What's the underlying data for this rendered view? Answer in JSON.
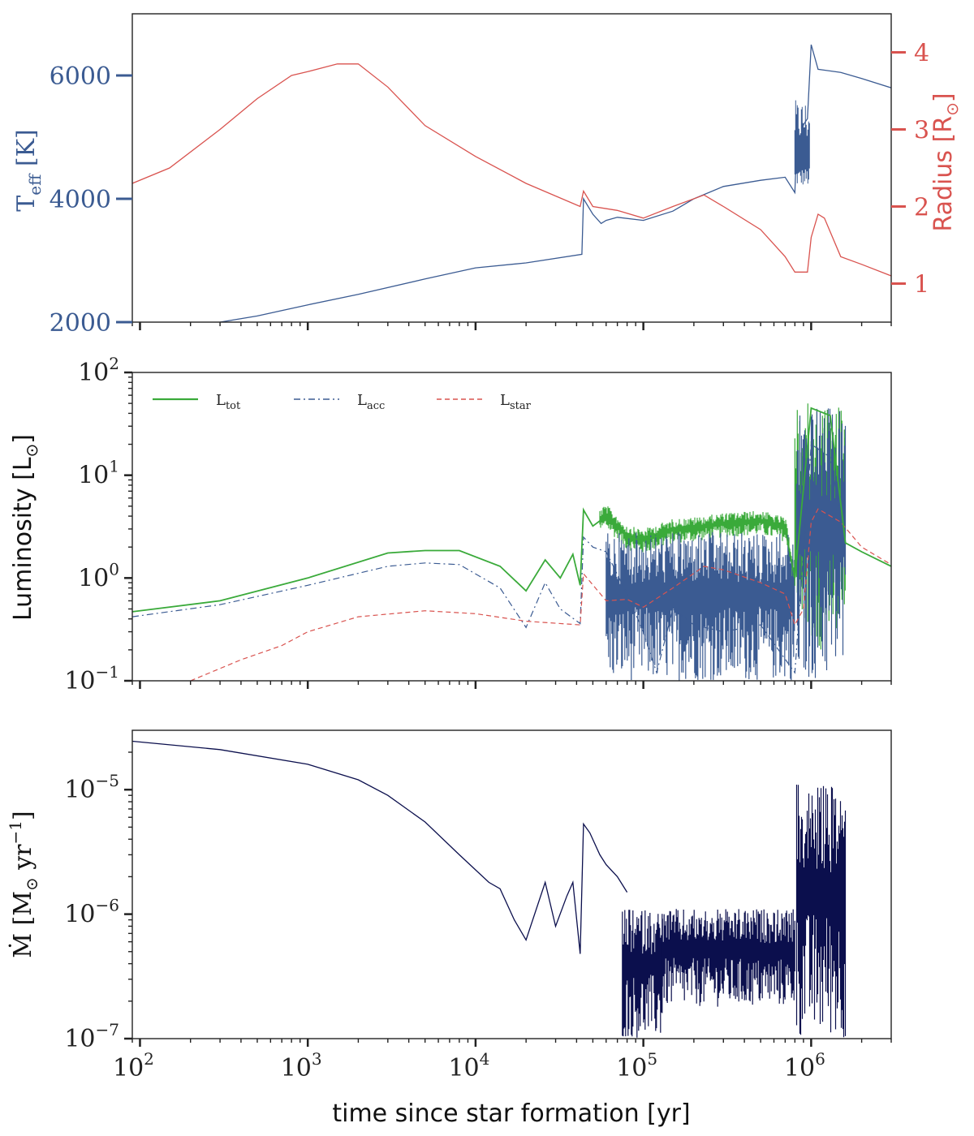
{
  "colors": {
    "teff": "#3b5b92",
    "radius": "#d9534f",
    "ltot": "#3aaa3a",
    "lacc": "#3b5b92",
    "lstar": "#d9534f",
    "mdot": "#0b0f4d",
    "axis": "#222222"
  },
  "chart_data": [
    {
      "id": "top",
      "type": "line",
      "xscale": "log",
      "xlim": [
        90,
        3000000
      ],
      "ylabel_left": {
        "main": "T",
        "sub": "eff",
        "unit": " [K]"
      },
      "ylabel_right": {
        "main": "Radius [R",
        "sub": "⊙",
        "unit": "]"
      },
      "yticks_left": [
        "2000",
        "4000",
        "6000"
      ],
      "yticks_left_values": [
        2000,
        4000,
        6000
      ],
      "yticks_right": [
        "1",
        "2",
        "3",
        "4"
      ],
      "yticks_right_values": [
        1,
        2,
        3,
        4
      ],
      "ylim_left": [
        2000,
        7000
      ],
      "ylim_right": [
        0.5,
        4.5
      ],
      "series": [
        {
          "axis": "left",
          "colorKey": "teff",
          "x": [
            300,
            500,
            1000,
            2000,
            5000,
            10000,
            20000,
            43000,
            44000,
            50000,
            56000,
            60000,
            70000,
            100000,
            150000,
            200000,
            300000,
            500000,
            700000,
            800000,
            810000,
            900000,
            950000,
            1000000,
            1100000,
            1500000,
            2000000,
            3000000
          ],
          "y": [
            2000,
            2100,
            2280,
            2450,
            2700,
            2880,
            2960,
            3100,
            4000,
            3750,
            3600,
            3650,
            3700,
            3650,
            3800,
            4000,
            4200,
            4300,
            4350,
            4100,
            4500,
            5200,
            5300,
            6500,
            6100,
            6050,
            5950,
            5800
          ]
        },
        {
          "axis": "right",
          "colorKey": "radius",
          "x": [
            90,
            150,
            300,
            500,
            800,
            1000,
            1500,
            2000,
            3000,
            5000,
            10000,
            20000,
            42000,
            44000,
            50000,
            70000,
            100000,
            150000,
            230000,
            300000,
            500000,
            700000,
            800000,
            950000,
            1000000,
            1100000,
            1200000,
            1500000,
            2000000,
            3000000
          ],
          "y": [
            2.3,
            2.5,
            3.0,
            3.4,
            3.7,
            3.75,
            3.85,
            3.85,
            3.55,
            3.05,
            2.65,
            2.3,
            2.0,
            2.2,
            2.0,
            1.95,
            1.85,
            2.0,
            2.15,
            2.0,
            1.7,
            1.35,
            1.15,
            1.15,
            1.6,
            1.9,
            1.85,
            1.35,
            1.25,
            1.1
          ]
        }
      ]
    },
    {
      "id": "middle",
      "type": "line",
      "xscale": "log",
      "yscale": "log",
      "xlim": [
        90,
        3000000
      ],
      "ylim": [
        0.1,
        100
      ],
      "ylabel": {
        "main": "Luminosity [L",
        "sub": "⊙",
        "unit": "]"
      },
      "yticks": [
        {
          "base": "10",
          "exp": "−1",
          "value": 0.1
        },
        {
          "base": "10",
          "exp": "0",
          "value": 1
        },
        {
          "base": "10",
          "exp": "1",
          "value": 10
        },
        {
          "base": "10",
          "exp": "2",
          "value": 100
        }
      ],
      "legend": [
        {
          "main": "L",
          "sub": "tot",
          "colorKey": "ltot",
          "dash": ""
        },
        {
          "main": "L",
          "sub": "acc",
          "colorKey": "lacc",
          "dash": "8,4,2,4"
        },
        {
          "main": "L",
          "sub": "star",
          "colorKey": "lstar",
          "dash": "6,4"
        }
      ],
      "series": [
        {
          "name": "L_acc",
          "colorKey": "lacc",
          "dash": "8,4,2,4",
          "x": [
            90,
            300,
            1000,
            3000,
            5000,
            8000,
            14000,
            20000,
            26000,
            32000,
            42000,
            44000,
            50000,
            60000,
            80000,
            100000,
            120000,
            150000,
            200000,
            300000,
            500000,
            800000,
            1000000,
            1300000,
            1600000
          ],
          "y": [
            0.42,
            0.55,
            0.85,
            1.3,
            1.4,
            1.35,
            0.8,
            0.33,
            0.9,
            0.5,
            0.36,
            2.5,
            2.0,
            1.8,
            0.7,
            0.3,
            0.12,
            0.5,
            0.35,
            0.3,
            0.35,
            0.12,
            20,
            15,
            2.1
          ]
        },
        {
          "name": "L_star",
          "colorKey": "lstar",
          "dash": "6,4",
          "x": [
            200,
            400,
            700,
            1000,
            2000,
            5000,
            10000,
            20000,
            42000,
            44000,
            60000,
            80000,
            100000,
            150000,
            230000,
            300000,
            500000,
            700000,
            800000,
            900000,
            1000000,
            1100000,
            1500000,
            2000000,
            3000000
          ],
          "y": [
            0.1,
            0.16,
            0.22,
            0.3,
            0.42,
            0.48,
            0.45,
            0.38,
            0.35,
            1.1,
            0.6,
            0.62,
            0.52,
            0.8,
            1.3,
            1.2,
            0.9,
            0.7,
            0.35,
            0.5,
            3.5,
            4.7,
            3.5,
            2.0,
            1.35
          ]
        },
        {
          "name": "L_tot",
          "colorKey": "ltot",
          "dash": "",
          "x": [
            90,
            300,
            1000,
            3000,
            5000,
            8000,
            14000,
            20000,
            26000,
            32000,
            38000,
            42000,
            44000,
            50000,
            60000,
            80000,
            100000,
            150000,
            200000,
            300000,
            500000,
            700000,
            800000,
            1000000,
            1300000,
            1600000,
            2000000,
            3000000
          ],
          "y": [
            0.47,
            0.6,
            1.0,
            1.75,
            1.85,
            1.85,
            1.3,
            0.75,
            1.5,
            1.0,
            1.7,
            0.85,
            4.6,
            3.2,
            4.0,
            2.5,
            2.3,
            2.9,
            3.0,
            3.3,
            3.5,
            3.0,
            1.0,
            45,
            38,
            2.2,
            1.8,
            1.3
          ]
        }
      ],
      "noise_bands": [
        {
          "colorKey": "ltot",
          "x0": 55000,
          "x1": 800000,
          "ylow_ratio": 0.75,
          "yhigh_ratio": 1.3
        },
        {
          "colorKey": "lacc",
          "x0": 60000,
          "x1": 800000,
          "ylow": 0.1,
          "yhigh": 2.8
        },
        {
          "colorKey": "ltot",
          "x0": 800000,
          "x1": 1600000,
          "ylow": 0.2,
          "yhigh": 50
        },
        {
          "colorKey": "lacc",
          "x0": 820000,
          "x1": 1600000,
          "ylow": 0.1,
          "yhigh": 45
        }
      ]
    },
    {
      "id": "bottom",
      "type": "line",
      "xscale": "log",
      "yscale": "log",
      "xlim": [
        90,
        3000000
      ],
      "ylim": [
        1e-07,
        3e-05
      ],
      "xlabel": "time since star formation [yr]",
      "ylabel": {
        "main": "Ṁ [M",
        "sub": "⊙",
        "unit": " yr",
        "sup": "−1",
        "end": "]"
      },
      "xticks": [
        {
          "base": "10",
          "exp": "2",
          "value": 100
        },
        {
          "base": "10",
          "exp": "3",
          "value": 1000
        },
        {
          "base": "10",
          "exp": "4",
          "value": 10000
        },
        {
          "base": "10",
          "exp": "5",
          "value": 100000
        },
        {
          "base": "10",
          "exp": "6",
          "value": 1000000
        }
      ],
      "yticks": [
        {
          "base": "10",
          "exp": "−7",
          "value": 1e-07
        },
        {
          "base": "10",
          "exp": "−6",
          "value": 1e-06
        },
        {
          "base": "10",
          "exp": "−5",
          "value": 1e-05
        }
      ],
      "series": [
        {
          "name": "Mdot",
          "colorKey": "mdot",
          "x": [
            90,
            300,
            1000,
            2000,
            3000,
            5000,
            8000,
            12000,
            14000,
            17000,
            20000,
            26000,
            30000,
            35000,
            38000,
            42000,
            44000,
            48000,
            55000,
            60000,
            70000,
            80000
          ],
          "y": [
            2.45e-05,
            2.1e-05,
            1.6e-05,
            1.2e-05,
            9e-06,
            5.5e-06,
            3e-06,
            1.8e-06,
            1.6e-06,
            9e-07,
            6.2e-07,
            1.8e-06,
            8e-07,
            1.4e-06,
            1.8e-06,
            4.8e-07,
            5.3e-06,
            4.5e-06,
            3e-06,
            2.5e-06,
            2e-06,
            1.5e-06
          ]
        }
      ],
      "noise_bands": [
        {
          "colorKey": "mdot",
          "x0": 75000,
          "x1": 130000,
          "ylow": 1e-07,
          "yhigh": 1.1e-06
        },
        {
          "colorKey": "mdot",
          "x0": 130000,
          "x1": 800000,
          "ylow": 1.8e-07,
          "yhigh": 1.1e-06
        },
        {
          "colorKey": "mdot",
          "x0": 820000,
          "x1": 1600000,
          "ylow": 1e-07,
          "yhigh": 1.1e-05
        }
      ]
    }
  ]
}
